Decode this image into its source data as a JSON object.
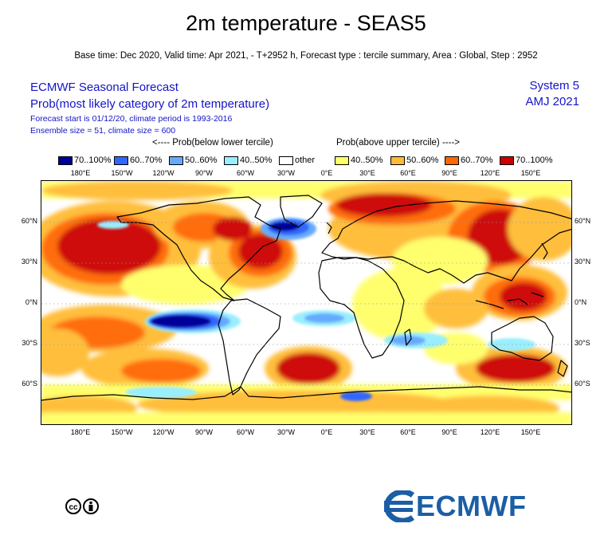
{
  "title": "2m temperature - SEAS5",
  "subtitle": "Base time: Dec 2020, Valid time: Apr 2021, - T+2952 h, Forecast type : tercile summary, Area : Global, Step : 2952",
  "header": {
    "left": [
      "ECMWF Seasonal Forecast",
      "Prob(most likely category of 2m temperature)",
      "Forecast start is 01/12/20, climate period is 1993-2016",
      "Ensemble size = 51, climate size = 600"
    ],
    "right": [
      "System 5",
      "AMJ 2021"
    ]
  },
  "legend": {
    "below_caption": "<---- Prob(below lower tercile)",
    "above_caption": "Prob(above upper tercile) ---->",
    "items": [
      {
        "label": "70..100%",
        "color": "#000099"
      },
      {
        "label": "60..70%",
        "color": "#3366ff"
      },
      {
        "label": "50..60%",
        "color": "#66aaff"
      },
      {
        "label": "40..50%",
        "color": "#99eeff"
      },
      {
        "label": "other",
        "color": "#ffffff"
      },
      {
        "label": "40..50%",
        "color": "#ffff66"
      },
      {
        "label": "50..60%",
        "color": "#ffbb33"
      },
      {
        "label": "60..70%",
        "color": "#ff6600"
      },
      {
        "label": "70..100%",
        "color": "#cc0000"
      }
    ]
  },
  "axes": {
    "lon_labels": [
      "180°E",
      "150°W",
      "120°W",
      "90°W",
      "60°W",
      "30°W",
      "0°E",
      "30°E",
      "60°E",
      "90°E",
      "120°E",
      "150°E"
    ],
    "lat_labels": [
      "60°N",
      "30°N",
      "0°N",
      "30°S",
      "60°S"
    ]
  },
  "logo": {
    "text": "ECMWF",
    "color": "#1b5ea6"
  },
  "license_icon": "creative-commons-by-icon"
}
